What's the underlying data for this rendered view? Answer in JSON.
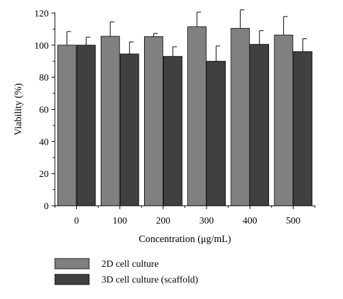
{
  "chart_data": {
    "type": "bar",
    "xlabel": "Concentration (μg/mL)",
    "ylabel": "Viability (%)",
    "categories": [
      "0",
      "100",
      "200",
      "300",
      "400",
      "500"
    ],
    "ylim": [
      0,
      120
    ],
    "yticks": [
      0,
      20,
      40,
      60,
      80,
      100,
      120
    ],
    "grid": false,
    "legend_position": "bottom",
    "series": [
      {
        "name": "2D cell culture",
        "color": "#808080",
        "values": [
          100,
          105.5,
          105.3,
          111.5,
          110.5,
          106.3
        ],
        "errors": [
          8.5,
          9.0,
          2.0,
          9.0,
          11.5,
          11.5
        ]
      },
      {
        "name": "3D cell culture (scaffold)",
        "color": "#404040",
        "values": [
          100,
          94.5,
          93.0,
          90.0,
          100.5,
          96.0
        ],
        "errors": [
          5.0,
          7.5,
          6.0,
          9.5,
          8.5,
          8.0
        ]
      }
    ]
  }
}
